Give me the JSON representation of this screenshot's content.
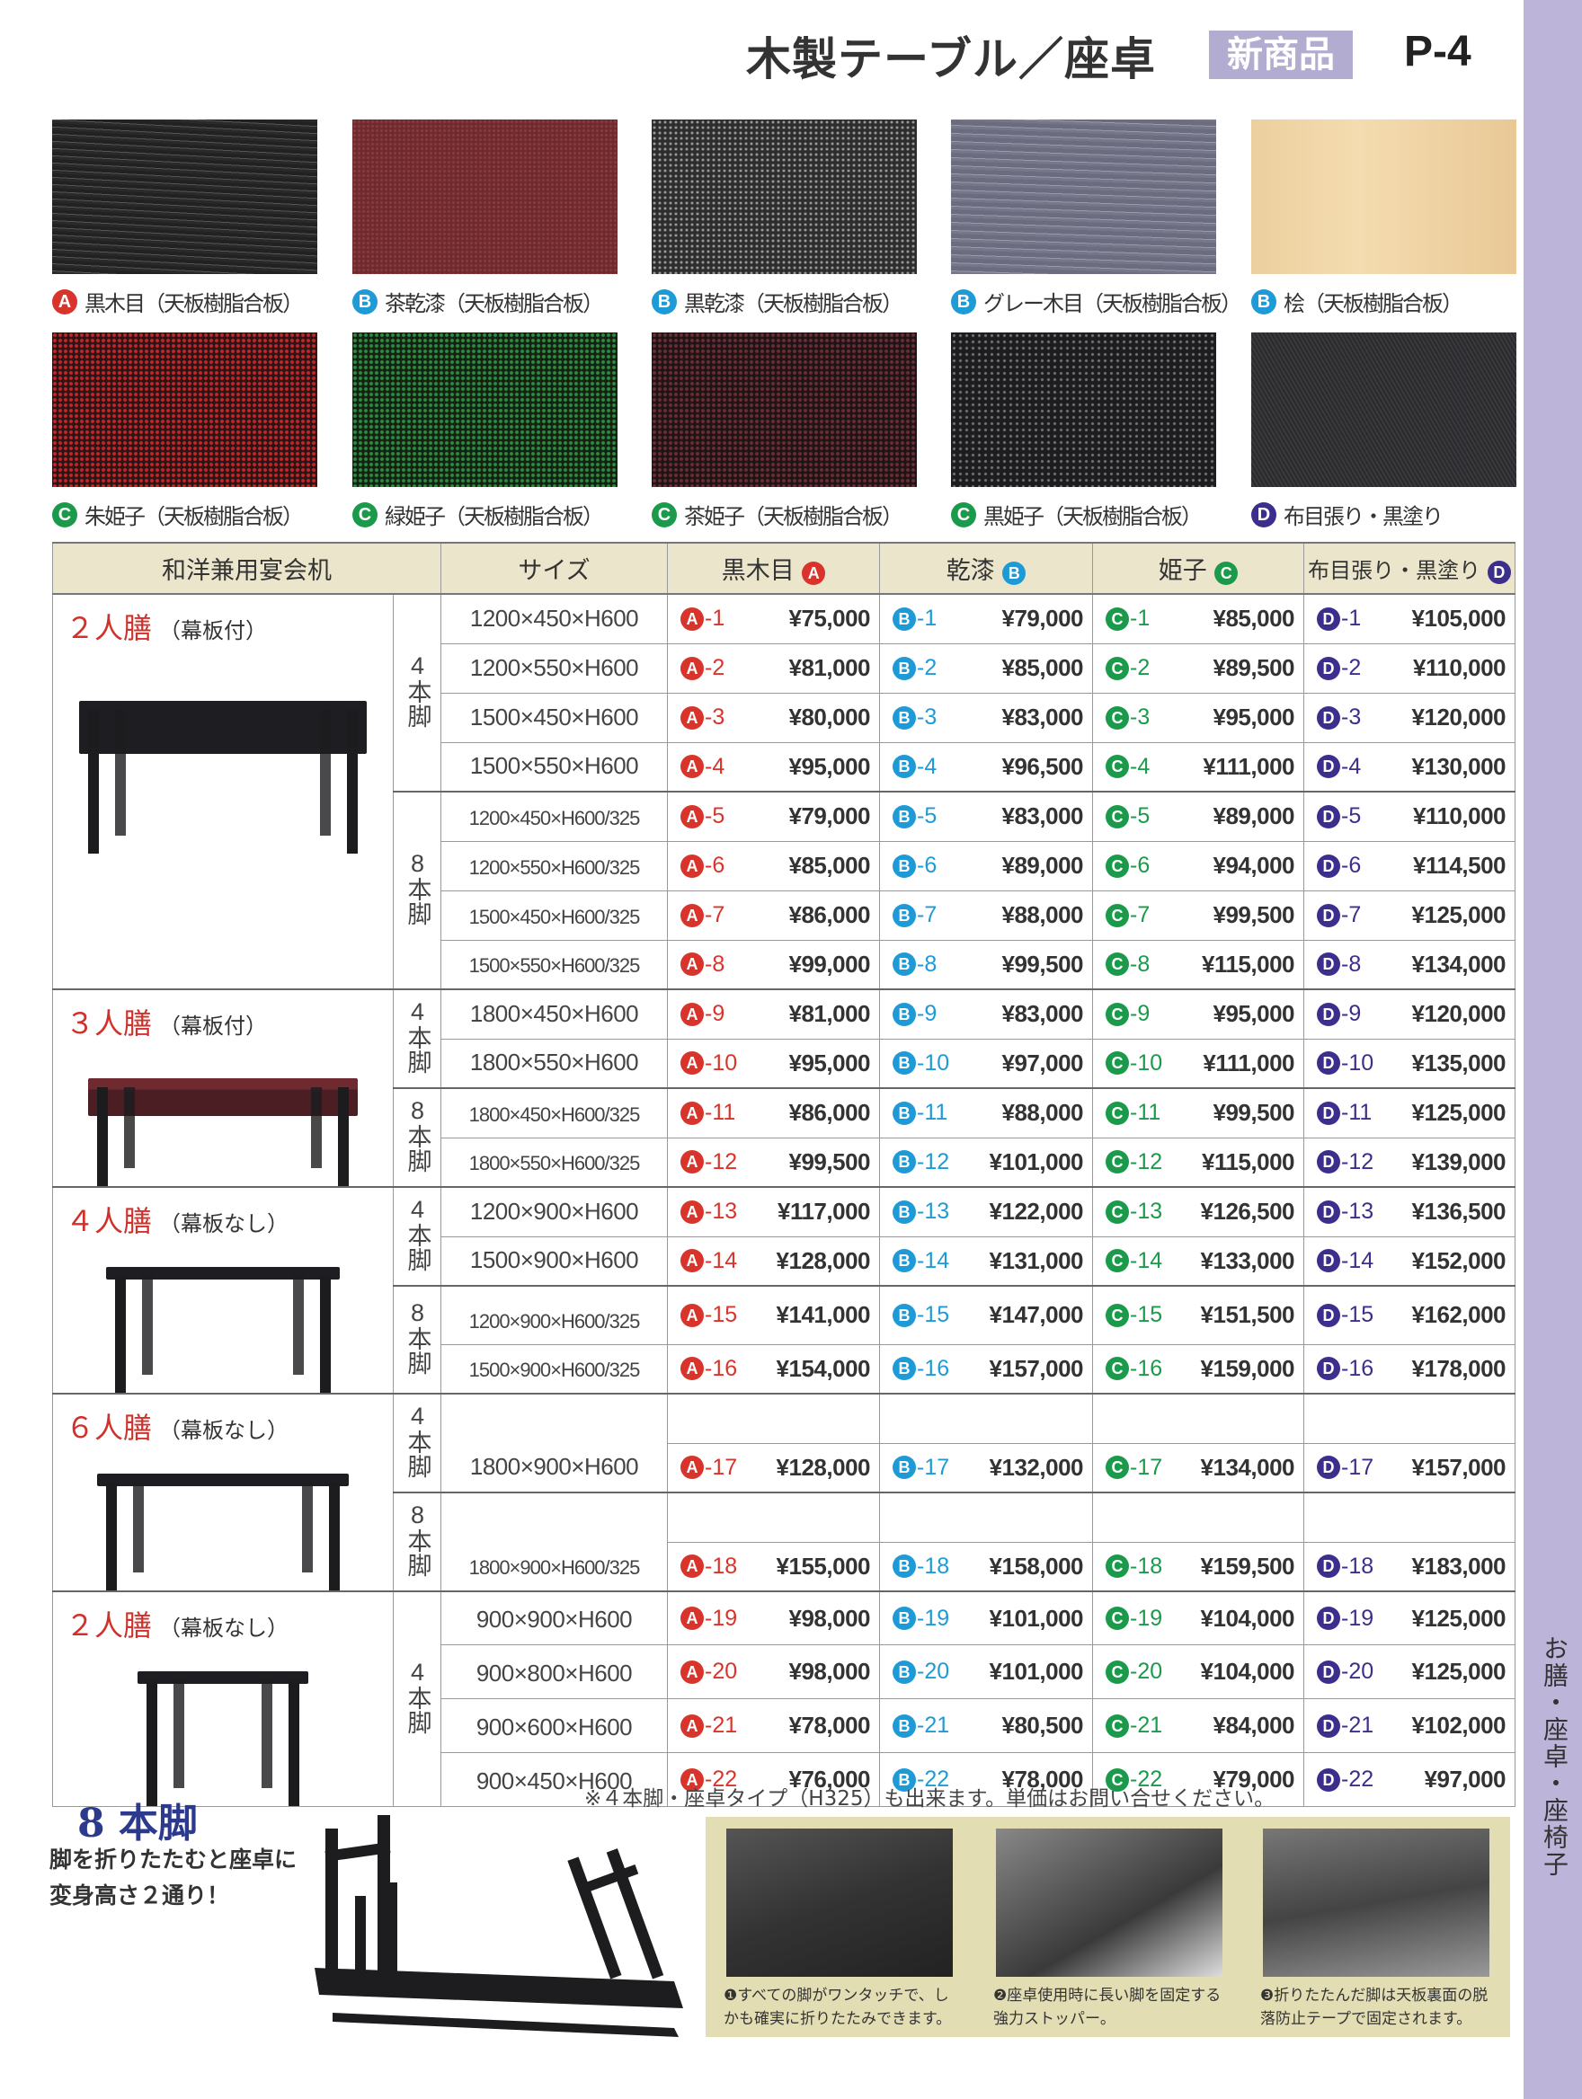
{
  "header": {
    "title": "木製テーブル／座卓",
    "badge": "新商品",
    "page": "P-4"
  },
  "side_tab": "お膳・座卓・座椅子",
  "colors": {
    "A": "#d9342b",
    "B": "#1e9ad6",
    "C": "#1a9a4a",
    "D": "#3b2e8c",
    "side": "#bdb5d9",
    "header_bg": "#ebe5cb"
  },
  "swatches": [
    {
      "badge": "A",
      "label": "黒木目（天板樹脂合板）",
      "pattern": "black-wood"
    },
    {
      "badge": "B",
      "label": "茶乾漆（天板樹脂合板）",
      "pattern": "brown-lacquer"
    },
    {
      "badge": "B",
      "label": "黒乾漆（天板樹脂合板）",
      "pattern": "black-lacquer"
    },
    {
      "badge": "B",
      "label": "グレー木目（天板樹脂合板）",
      "pattern": "grey-wood"
    },
    {
      "badge": "B",
      "label": "桧（天板樹脂合板）",
      "pattern": "hinoki"
    },
    {
      "badge": "C",
      "label": "朱姫子（天板樹脂合板）",
      "pattern": "red-speckle"
    },
    {
      "badge": "C",
      "label": "緑姫子（天板樹脂合板）",
      "pattern": "green-speckle"
    },
    {
      "badge": "C",
      "label": "茶姫子（天板樹脂合板）",
      "pattern": "brown-speckle"
    },
    {
      "badge": "C",
      "label": "黒姫子（天板樹脂合板）",
      "pattern": "black-speckle"
    },
    {
      "badge": "D",
      "label": "布目張り・黒塗り",
      "pattern": "cloth"
    }
  ],
  "table": {
    "headers": {
      "name": "和洋兼用宴会机",
      "size": "サイズ"
    },
    "columns": [
      {
        "label": "黒木目",
        "badge": "A"
      },
      {
        "label": "乾漆",
        "badge": "B"
      },
      {
        "label": "姫子",
        "badge": "C"
      },
      {
        "label": "布目張り・黒塗り",
        "badge": "D"
      }
    ],
    "groups": [
      {
        "name": "２人膳",
        "note": "（幕板付）",
        "legs": [
          {
            "label": "4本脚",
            "items": [
              {
                "size": "1200×450×H600",
                "no": "-1",
                "prices": [
                  "¥75,000",
                  "¥79,000",
                  "¥85,000",
                  "¥105,000"
                ]
              },
              {
                "size": "1200×550×H600",
                "no": "-2",
                "prices": [
                  "¥81,000",
                  "¥85,000",
                  "¥89,500",
                  "¥110,000"
                ]
              },
              {
                "size": "1500×450×H600",
                "no": "-3",
                "prices": [
                  "¥80,000",
                  "¥83,000",
                  "¥95,000",
                  "¥120,000"
                ]
              },
              {
                "size": "1500×550×H600",
                "no": "-4",
                "prices": [
                  "¥95,000",
                  "¥96,500",
                  "¥111,000",
                  "¥130,000"
                ]
              }
            ]
          },
          {
            "label": "8本脚",
            "items": [
              {
                "size": "1200×450×H600/325",
                "no": "-5",
                "prices": [
                  "¥79,000",
                  "¥83,000",
                  "¥89,000",
                  "¥110,000"
                ]
              },
              {
                "size": "1200×550×H600/325",
                "no": "-6",
                "prices": [
                  "¥85,000",
                  "¥89,000",
                  "¥94,000",
                  "¥114,500"
                ]
              },
              {
                "size": "1500×450×H600/325",
                "no": "-7",
                "prices": [
                  "¥86,000",
                  "¥88,000",
                  "¥99,500",
                  "¥125,000"
                ]
              },
              {
                "size": "1500×550×H600/325",
                "no": "-8",
                "prices": [
                  "¥99,000",
                  "¥99,500",
                  "¥115,000",
                  "¥134,000"
                ]
              }
            ]
          }
        ]
      },
      {
        "name": "３人膳",
        "note": "（幕板付）",
        "legs": [
          {
            "label": "4本脚",
            "items": [
              {
                "size": "1800×450×H600",
                "no": "-9",
                "prices": [
                  "¥81,000",
                  "¥83,000",
                  "¥95,000",
                  "¥120,000"
                ]
              },
              {
                "size": "1800×550×H600",
                "no": "-10",
                "prices": [
                  "¥95,000",
                  "¥97,000",
                  "¥111,000",
                  "¥135,000"
                ]
              }
            ]
          },
          {
            "label": "8本脚",
            "items": [
              {
                "size": "1800×450×H600/325",
                "no": "-11",
                "prices": [
                  "¥86,000",
                  "¥88,000",
                  "¥99,500",
                  "¥125,000"
                ]
              },
              {
                "size": "1800×550×H600/325",
                "no": "-12",
                "prices": [
                  "¥99,500",
                  "¥101,000",
                  "¥115,000",
                  "¥139,000"
                ]
              }
            ]
          }
        ]
      },
      {
        "name": "４人膳",
        "note": "（幕板なし）",
        "legs": [
          {
            "label": "4本脚",
            "items": [
              {
                "size": "1200×900×H600",
                "no": "-13",
                "prices": [
                  "¥117,000",
                  "¥122,000",
                  "¥126,500",
                  "¥136,500"
                ]
              },
              {
                "size": "1500×900×H600",
                "no": "-14",
                "prices": [
                  "¥128,000",
                  "¥131,000",
                  "¥133,000",
                  "¥152,000"
                ]
              }
            ]
          },
          {
            "label": "8本脚",
            "items": [
              {
                "size": "1200×900×H600/325",
                "no": "-15",
                "prices": [
                  "¥141,000",
                  "¥147,000",
                  "¥151,500",
                  "¥162,000"
                ]
              },
              {
                "size": "1500×900×H600/325",
                "no": "-16",
                "prices": [
                  "¥154,000",
                  "¥157,000",
                  "¥159,000",
                  "¥178,000"
                ]
              }
            ]
          }
        ]
      },
      {
        "name": "６人膳",
        "note": "（幕板なし）",
        "tall": true,
        "legs": [
          {
            "label": "4本脚",
            "items": [
              {
                "size": "1800×900×H600",
                "no": "-17",
                "prices": [
                  "¥128,000",
                  "¥132,000",
                  "¥134,000",
                  "¥157,000"
                ]
              }
            ]
          },
          {
            "label": "8本脚",
            "items": [
              {
                "size": "1800×900×H600/325",
                "no": "-18",
                "prices": [
                  "¥155,000",
                  "¥158,000",
                  "¥159,500",
                  "¥183,000"
                ]
              }
            ]
          }
        ]
      },
      {
        "name": "２人膳",
        "note": "（幕板なし）",
        "legs": [
          {
            "label": "4本脚",
            "items": [
              {
                "size": "900×900×H600",
                "no": "-19",
                "prices": [
                  "¥98,000",
                  "¥101,000",
                  "¥104,000",
                  "¥125,000"
                ]
              },
              {
                "size": "900×800×H600",
                "no": "-20",
                "prices": [
                  "¥98,000",
                  "¥101,000",
                  "¥104,000",
                  "¥125,000"
                ]
              },
              {
                "size": "900×600×H600",
                "no": "-21",
                "prices": [
                  "¥78,000",
                  "¥80,500",
                  "¥84,000",
                  "¥102,000"
                ]
              },
              {
                "size": "900×450×H600",
                "no": "-22",
                "prices": [
                  "¥76,000",
                  "¥78,000",
                  "¥79,000",
                  "¥97,000"
                ]
              }
            ]
          }
        ]
      }
    ]
  },
  "note": "※４本脚・座卓タイプ（H325）も出来ます。単価はお問い合せください。",
  "feature": {
    "title": "8 本脚",
    "lines": [
      "脚を折りたたむと座卓に",
      "変身高さ２通り！"
    ]
  },
  "captions": [
    {
      "num": "❶",
      "text": "すべての脚がワンタッチで、しかも確実に折りたたみできます。"
    },
    {
      "num": "❷",
      "text": "座卓使用時に長い脚を固定する強力ストッパー。"
    },
    {
      "num": "❸",
      "text": "折りたたんだ脚は天板裏面の脱落防止テープで固定されます。"
    }
  ]
}
